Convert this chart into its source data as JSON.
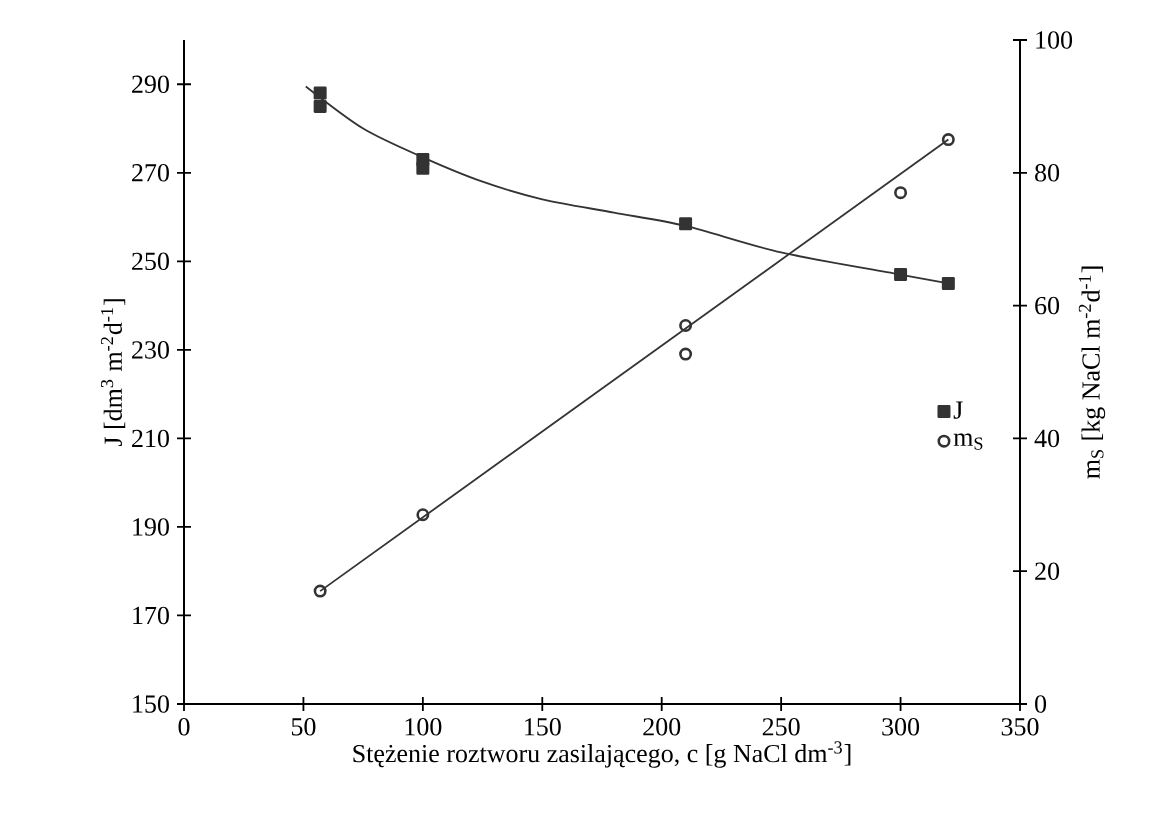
{
  "chart_data": {
    "type": "scatter",
    "xlabel": "Stężenie roztworu zasilającego, c [g NaCl dm$^{-3}$]",
    "ylabel": "J [dm$^{3}$ m$^{-2}$d$^{-1}$]",
    "y2label": "m$_{S}$ [kg NaCl m$^{-2}$d$^{-1}$]",
    "xlim": [
      0,
      350
    ],
    "xticks": [
      0,
      50,
      100,
      150,
      200,
      250,
      300,
      350
    ],
    "ylim": [
      150,
      300
    ],
    "yticks": [
      150,
      170,
      190,
      210,
      230,
      250,
      270,
      290
    ],
    "y2lim": [
      0,
      100
    ],
    "y2ticks": [
      0,
      20,
      40,
      60,
      80,
      100
    ],
    "grid": false,
    "legend": "right",
    "series": [
      {
        "name": "J",
        "marker": "square",
        "color": "#333333",
        "x": [
          57,
          57,
          100,
          100,
          210,
          300,
          320
        ],
        "values": [
          288,
          285,
          273,
          271,
          258.5,
          247,
          245
        ]
      },
      {
        "name": "m$_{S}$",
        "marker": "circle",
        "axis": "y2",
        "color": "#333333",
        "x": [
          57,
          100,
          210,
          210,
          300,
          320
        ],
        "values": [
          17,
          28.5,
          57,
          52.7,
          77,
          85
        ]
      },
      {
        "type": "line",
        "marker": "none",
        "color": "#333333",
        "x": [
          51,
          75,
          100,
          125,
          150,
          180,
          210,
          250,
          300,
          320
        ],
        "values": [
          289.5,
          280,
          273.5,
          268,
          264,
          261,
          258,
          252,
          247,
          245
        ]
      },
      {
        "type": "line",
        "marker": "none",
        "axis": "y2",
        "color": "#333333",
        "x": [
          57,
          320
        ],
        "values": [
          17,
          85
        ]
      }
    ]
  }
}
